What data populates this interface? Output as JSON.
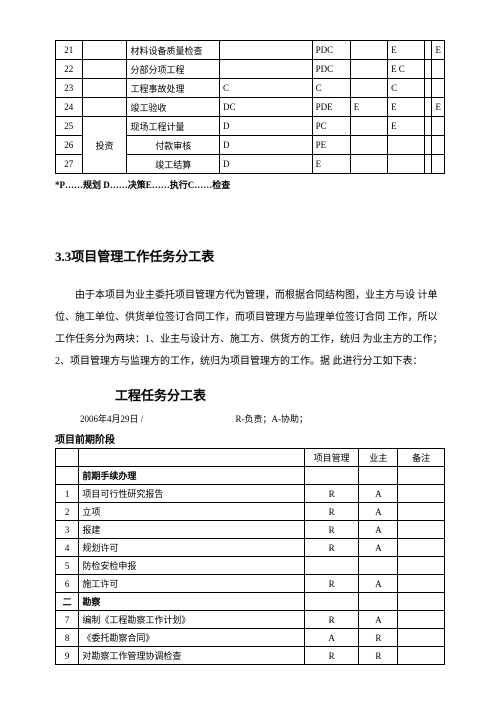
{
  "table1": {
    "rows": [
      {
        "n": "21",
        "cat": "",
        "task": "材料设备质量检查",
        "c4": "",
        "c5": "PDC",
        "c6": "",
        "c7": "E",
        "c8": "",
        "c9": "E"
      },
      {
        "n": "22",
        "cat": "",
        "task": "分部分项工程",
        "c4": "",
        "c5": "PDC",
        "c6": "",
        "c7": "E C",
        "c8": "",
        "c9": ""
      },
      {
        "n": "23",
        "cat": "",
        "task": "工程事故处理",
        "c4": "C",
        "c5": "C",
        "c6": "",
        "c7": "C",
        "c8": "",
        "c9": ""
      },
      {
        "n": "24",
        "cat": "",
        "task": "竣工验收",
        "c4": "DC",
        "c5": "PDE",
        "c6": "E",
        "c7": "E",
        "c8": "",
        "c9": "E"
      },
      {
        "n": "25",
        "cat": "",
        "task": "现场工程计量",
        "c4": "D",
        "c5": "PC",
        "c6": "",
        "c7": "E",
        "c8": "",
        "c9": ""
      },
      {
        "n": "26",
        "cat": "投资",
        "task": "付款审核",
        "c4": "D",
        "c5": "PE",
        "c6": "",
        "c7": "",
        "c8": "",
        "c9": ""
      },
      {
        "n": "27",
        "cat": "",
        "task": "竣工结算",
        "c4": "D",
        "c5": "E",
        "c6": "",
        "c7": "",
        "c8": "",
        "c9": ""
      }
    ],
    "footnote": "*P……规划 D……决策E……执行C……检查"
  },
  "section": {
    "title": "3.3项目管理工作任务分工表",
    "paragraph": "由于本项目为业主委托项目管理方代为管理，而根据合同结构图，业主方与设 计单位、施工单位、供货单位签订合同工作，而项目管理方与监理单位签订合同 工作，所以工作任务分为两块：1、业主与设计方、施工方、供货方的工作，统归 为业主方的工作；2、项目管理方与监理方的工作，统归为项目管理方的工作。据 此进行分工如下表："
  },
  "table2": {
    "title": "工程任务分工表",
    "date": "2006年4月29日 /",
    "legend": "R-负责；A-协助；",
    "sectionHeader": "项目前期阶段",
    "headers": [
      "",
      "",
      "项目管理",
      "业主",
      "备注"
    ],
    "rows": [
      {
        "type": "group",
        "n": "",
        "name": "前期手续办理",
        "c3": "",
        "c4": "",
        "c5": ""
      },
      {
        "type": "row",
        "n": "1",
        "name": "项目可行性研究报告",
        "c3": "R",
        "c4": "A",
        "c5": ""
      },
      {
        "type": "row",
        "n": "2",
        "name": "立项",
        "c3": "R",
        "c4": "A",
        "c5": ""
      },
      {
        "type": "row",
        "n": "3",
        "name": "报建",
        "c3": "R",
        "c4": "A",
        "c5": ""
      },
      {
        "type": "row",
        "n": "4",
        "name": "规划许可",
        "c3": "R",
        "c4": "A",
        "c5": ""
      },
      {
        "type": "row",
        "n": "5",
        "name": "防检安检申报",
        "c3": "",
        "c4": "",
        "c5": ""
      },
      {
        "type": "row",
        "n": "6",
        "name": "施工许可",
        "c3": "R",
        "c4": "A",
        "c5": ""
      },
      {
        "type": "group",
        "n": "二",
        "name": "勘察",
        "c3": "",
        "c4": "",
        "c5": ""
      },
      {
        "type": "row",
        "n": "7",
        "name": "编制《工程勘察工作计划》",
        "c3": "R",
        "c4": "A",
        "c5": ""
      },
      {
        "type": "row",
        "n": "8",
        "name": "《委托勘察合同》",
        "c3": "A",
        "c4": "R",
        "c5": ""
      },
      {
        "type": "row",
        "n": "9",
        "name": "对勘察工作管理协调检查",
        "c3": "R",
        "c4": "R",
        "c5": ""
      }
    ]
  }
}
